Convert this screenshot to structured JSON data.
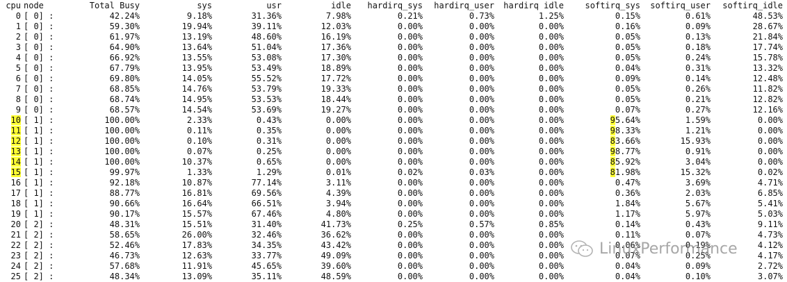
{
  "headers": {
    "cpu": "cpu",
    "node": "node",
    "total": "Total Busy",
    "sys": "sys",
    "usr": "usr",
    "idle": "idle",
    "hardirq_sys": "hardirq_sys",
    "hardirq_user": "hardirq_user",
    "hardirq_idle": "hardirq idle",
    "softirq_sys": "softirq_sys",
    "softirq_user": "softirq_user",
    "softirq_idle": "softirq_idle"
  },
  "rows": [
    {
      "cpu": "0",
      "node": "[ 0] :",
      "total": "42.24%",
      "sys": "9.18%",
      "usr": "31.36%",
      "idle": "7.98%",
      "hsys": "0.21%",
      "huser": "0.73%",
      "hidle": "1.25%",
      "ssys": "0.15%",
      "suser": "0.61%",
      "sidle": "48.53%"
    },
    {
      "cpu": "1",
      "node": "[ 0] :",
      "total": "59.30%",
      "sys": "19.94%",
      "usr": "39.11%",
      "idle": "12.03%",
      "hsys": "0.00%",
      "huser": "0.00%",
      "hidle": "0.00%",
      "ssys": "0.16%",
      "suser": "0.09%",
      "sidle": "28.67%"
    },
    {
      "cpu": "2",
      "node": "[ 0] :",
      "total": "61.97%",
      "sys": "13.19%",
      "usr": "48.60%",
      "idle": "16.19%",
      "hsys": "0.00%",
      "huser": "0.00%",
      "hidle": "0.00%",
      "ssys": "0.05%",
      "suser": "0.13%",
      "sidle": "21.84%"
    },
    {
      "cpu": "3",
      "node": "[ 0] :",
      "total": "64.90%",
      "sys": "13.64%",
      "usr": "51.04%",
      "idle": "17.36%",
      "hsys": "0.00%",
      "huser": "0.00%",
      "hidle": "0.00%",
      "ssys": "0.05%",
      "suser": "0.18%",
      "sidle": "17.74%"
    },
    {
      "cpu": "4",
      "node": "[ 0] :",
      "total": "66.92%",
      "sys": "13.55%",
      "usr": "53.08%",
      "idle": "17.30%",
      "hsys": "0.00%",
      "huser": "0.00%",
      "hidle": "0.00%",
      "ssys": "0.05%",
      "suser": "0.24%",
      "sidle": "15.78%"
    },
    {
      "cpu": "5",
      "node": "[ 0] :",
      "total": "67.79%",
      "sys": "13.95%",
      "usr": "53.49%",
      "idle": "18.89%",
      "hsys": "0.00%",
      "huser": "0.00%",
      "hidle": "0.00%",
      "ssys": "0.04%",
      "suser": "0.31%",
      "sidle": "13.32%"
    },
    {
      "cpu": "6",
      "node": "[ 0] :",
      "total": "69.80%",
      "sys": "14.05%",
      "usr": "55.52%",
      "idle": "17.72%",
      "hsys": "0.00%",
      "huser": "0.00%",
      "hidle": "0.00%",
      "ssys": "0.09%",
      "suser": "0.14%",
      "sidle": "12.48%"
    },
    {
      "cpu": "7",
      "node": "[ 0] :",
      "total": "68.85%",
      "sys": "14.76%",
      "usr": "53.79%",
      "idle": "19.33%",
      "hsys": "0.00%",
      "huser": "0.00%",
      "hidle": "0.00%",
      "ssys": "0.05%",
      "suser": "0.26%",
      "sidle": "11.82%"
    },
    {
      "cpu": "8",
      "node": "[ 0] :",
      "total": "68.74%",
      "sys": "14.95%",
      "usr": "53.53%",
      "idle": "18.44%",
      "hsys": "0.00%",
      "huser": "0.00%",
      "hidle": "0.00%",
      "ssys": "0.05%",
      "suser": "0.21%",
      "sidle": "12.82%"
    },
    {
      "cpu": "9",
      "node": "[ 0] :",
      "total": "68.57%",
      "sys": "14.54%",
      "usr": "53.69%",
      "idle": "19.27%",
      "hsys": "0.00%",
      "huser": "0.00%",
      "hidle": "0.00%",
      "ssys": "0.07%",
      "suser": "0.27%",
      "sidle": "12.16%"
    },
    {
      "cpu": "10",
      "node": "[ 1] :",
      "total": "100.00%",
      "sys": "2.33%",
      "usr": "0.43%",
      "idle": "0.00%",
      "hsys": "0.00%",
      "huser": "0.00%",
      "hidle": "0.00%",
      "ssys": "95.64%",
      "suser": "1.59%",
      "sidle": "0.00%",
      "hl": true
    },
    {
      "cpu": "11",
      "node": "[ 1] :",
      "total": "100.00%",
      "sys": "0.11%",
      "usr": "0.35%",
      "idle": "0.00%",
      "hsys": "0.00%",
      "huser": "0.00%",
      "hidle": "0.00%",
      "ssys": "98.33%",
      "suser": "1.21%",
      "sidle": "0.00%",
      "hl": true
    },
    {
      "cpu": "12",
      "node": "[ 1] :",
      "total": "100.00%",
      "sys": "0.10%",
      "usr": "0.31%",
      "idle": "0.00%",
      "hsys": "0.00%",
      "huser": "0.00%",
      "hidle": "0.00%",
      "ssys": "83.66%",
      "suser": "15.93%",
      "sidle": "0.00%",
      "hl": true
    },
    {
      "cpu": "13",
      "node": "[ 1] :",
      "total": "100.00%",
      "sys": "0.07%",
      "usr": "0.25%",
      "idle": "0.00%",
      "hsys": "0.00%",
      "huser": "0.00%",
      "hidle": "0.00%",
      "ssys": "98.77%",
      "suser": "0.91%",
      "sidle": "0.00%",
      "hl": true
    },
    {
      "cpu": "14",
      "node": "[ 1] :",
      "total": "100.00%",
      "sys": "10.37%",
      "usr": "0.65%",
      "idle": "0.00%",
      "hsys": "0.00%",
      "huser": "0.00%",
      "hidle": "0.00%",
      "ssys": "85.92%",
      "suser": "3.04%",
      "sidle": "0.00%",
      "hl": true
    },
    {
      "cpu": "15",
      "node": "[ 1] :",
      "total": "99.97%",
      "sys": "1.33%",
      "usr": "1.29%",
      "idle": "0.01%",
      "hsys": "0.02%",
      "huser": "0.03%",
      "hidle": "0.00%",
      "ssys": "81.98%",
      "suser": "15.32%",
      "sidle": "0.02%",
      "hl": true
    },
    {
      "cpu": "16",
      "node": "[ 1] :",
      "total": "92.18%",
      "sys": "10.87%",
      "usr": "77.14%",
      "idle": "3.11%",
      "hsys": "0.00%",
      "huser": "0.00%",
      "hidle": "0.00%",
      "ssys": "0.47%",
      "suser": "3.69%",
      "sidle": "4.71%"
    },
    {
      "cpu": "17",
      "node": "[ 1] :",
      "total": "88.77%",
      "sys": "16.81%",
      "usr": "69.56%",
      "idle": "4.39%",
      "hsys": "0.00%",
      "huser": "0.00%",
      "hidle": "0.00%",
      "ssys": "0.36%",
      "suser": "2.03%",
      "sidle": "6.85%"
    },
    {
      "cpu": "18",
      "node": "[ 1] :",
      "total": "90.66%",
      "sys": "16.64%",
      "usr": "66.51%",
      "idle": "3.94%",
      "hsys": "0.00%",
      "huser": "0.00%",
      "hidle": "0.00%",
      "ssys": "1.84%",
      "suser": "5.67%",
      "sidle": "5.41%"
    },
    {
      "cpu": "19",
      "node": "[ 1] :",
      "total": "90.17%",
      "sys": "15.57%",
      "usr": "67.46%",
      "idle": "4.80%",
      "hsys": "0.00%",
      "huser": "0.00%",
      "hidle": "0.00%",
      "ssys": "1.17%",
      "suser": "5.97%",
      "sidle": "5.03%"
    },
    {
      "cpu": "20",
      "node": "[ 2] :",
      "total": "48.31%",
      "sys": "15.51%",
      "usr": "31.40%",
      "idle": "41.73%",
      "hsys": "0.25%",
      "huser": "0.57%",
      "hidle": "0.85%",
      "ssys": "0.14%",
      "suser": "0.43%",
      "sidle": "9.11%"
    },
    {
      "cpu": "21",
      "node": "[ 2] :",
      "total": "58.65%",
      "sys": "26.00%",
      "usr": "32.46%",
      "idle": "36.62%",
      "hsys": "0.00%",
      "huser": "0.00%",
      "hidle": "0.00%",
      "ssys": "0.11%",
      "suser": "0.07%",
      "sidle": "4.73%"
    },
    {
      "cpu": "22",
      "node": "[ 2] :",
      "total": "52.46%",
      "sys": "17.83%",
      "usr": "34.35%",
      "idle": "43.42%",
      "hsys": "0.00%",
      "huser": "0.00%",
      "hidle": "0.00%",
      "ssys": "0.06%",
      "suser": "0.19%",
      "sidle": "4.12%"
    },
    {
      "cpu": "23",
      "node": "[ 2] :",
      "total": "46.73%",
      "sys": "12.63%",
      "usr": "33.77%",
      "idle": "49.09%",
      "hsys": "0.00%",
      "huser": "0.00%",
      "hidle": "0.00%",
      "ssys": "0.07%",
      "suser": "0.25%",
      "sidle": "4.17%"
    },
    {
      "cpu": "24",
      "node": "[ 2] :",
      "total": "57.68%",
      "sys": "11.91%",
      "usr": "45.65%",
      "idle": "39.60%",
      "hsys": "0.00%",
      "huser": "0.00%",
      "hidle": "0.00%",
      "ssys": "0.04%",
      "suser": "0.09%",
      "sidle": "2.72%"
    },
    {
      "cpu": "25",
      "node": "[ 2] :",
      "total": "48.34%",
      "sys": "13.09%",
      "usr": "35.11%",
      "idle": "48.59%",
      "hsys": "0.00%",
      "huser": "0.00%",
      "hidle": "0.00%",
      "ssys": "0.04%",
      "suser": "0.10%",
      "sidle": "3.07%"
    }
  ],
  "watermark": {
    "text": "LinuxPerformance",
    "icon": "wechat-icon"
  },
  "colors": {
    "highlight": "#ffff33",
    "text": "#111111",
    "background": "#ffffff"
  }
}
